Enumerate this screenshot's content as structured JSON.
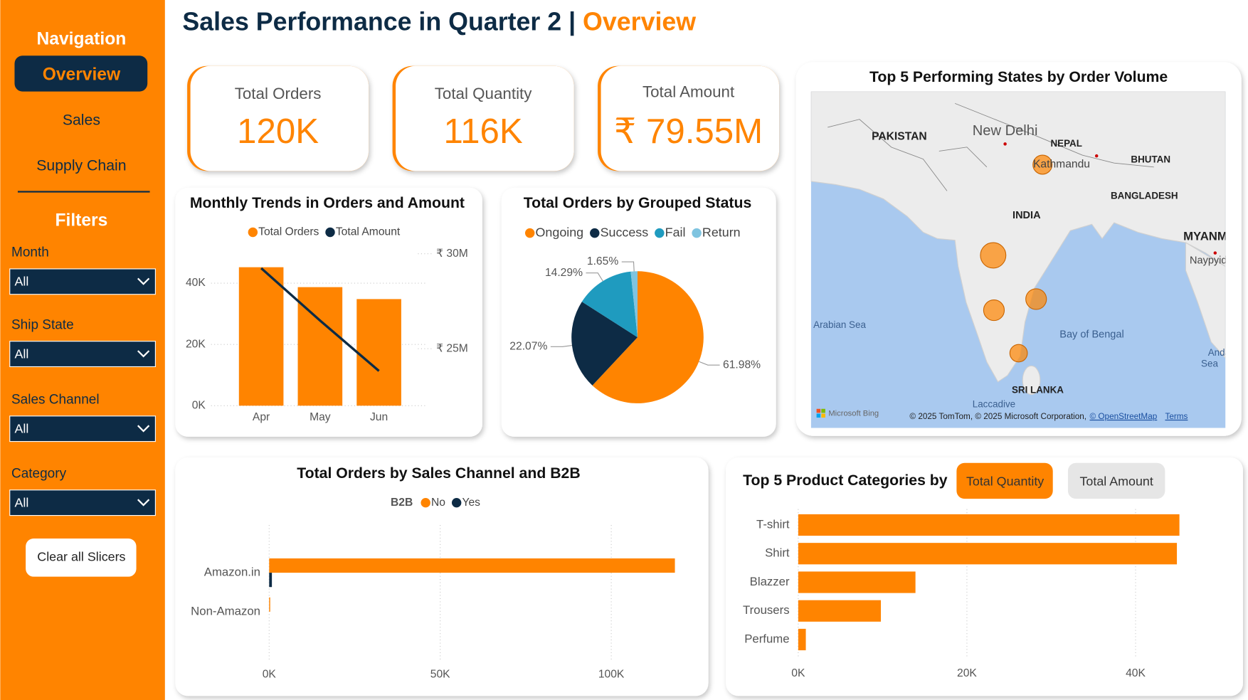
{
  "header": {
    "title": "Sales Performance in Quarter 2",
    "separator": "|",
    "page": "Overview"
  },
  "navigation": {
    "heading": "Navigation",
    "items": [
      "Overview",
      "Sales",
      "Supply Chain"
    ]
  },
  "filters": {
    "heading": "Filters",
    "slicers": [
      {
        "label": "Month",
        "value": "All"
      },
      {
        "label": "Ship State",
        "value": "All"
      },
      {
        "label": "Sales Channel",
        "value": "All"
      },
      {
        "label": "Category",
        "value": "All"
      }
    ],
    "clear_button": "Clear all Slicers"
  },
  "kpis": [
    {
      "label": "Total Orders",
      "value": "120K"
    },
    {
      "label": "Total Quantity",
      "value": "116K"
    },
    {
      "label": "Total Amount",
      "value": "₹ 79.55M"
    }
  ],
  "chart_data": [
    {
      "type": "bar-line",
      "title": "Monthly Trends in Orders and Amount",
      "categories": [
        "Apr",
        "May",
        "Jun"
      ],
      "series": [
        {
          "name": "Total Orders",
          "type": "bar",
          "color": "#ff8400",
          "values": [
            45200,
            38700,
            34800
          ]
        },
        {
          "name": "Total Amount",
          "type": "line",
          "axis": "y2",
          "color": "#0d2b45",
          "values": [
            29240000,
            26480000,
            23830000
          ]
        }
      ],
      "ylim": [
        0,
        49600
      ],
      "yticks": [
        {
          "value": 0,
          "label": "0K"
        },
        {
          "value": 20000,
          "label": "20K"
        },
        {
          "value": 40000,
          "label": "40K"
        }
      ],
      "y2lim": [
        22000000,
        30000000
      ],
      "y2ticks": [
        {
          "value": 25000000,
          "label": "₹ 25M"
        },
        {
          "value": 30000000,
          "label": "₹ 30M"
        }
      ],
      "grid": true
    },
    {
      "type": "pie",
      "title": "Total Orders by Grouped Status",
      "categories": [
        "Ongoing",
        "Success",
        "Fail",
        "Return"
      ],
      "values": [
        61.98,
        22.07,
        14.29,
        1.65
      ],
      "value_labels": [
        "61.98%",
        "22.07%",
        "14.29%",
        "1.65%"
      ],
      "colors": [
        "#ff8400",
        "#0d2b45",
        "#1f9bbf",
        "#7fc4e0"
      ]
    },
    {
      "type": "hbar",
      "title": "Total Orders by Sales Channel and B2B",
      "legend_title": "B2B",
      "categories": [
        "Amazon.in",
        "Non-Amazon"
      ],
      "series": [
        {
          "name": "No",
          "color": "#ff8400",
          "values": [
            118600,
            300
          ]
        },
        {
          "name": "Yes",
          "color": "#0d2b45",
          "values": [
            800,
            0
          ]
        }
      ],
      "xlim": [
        0,
        122000
      ],
      "xticks": [
        {
          "value": 0,
          "label": "0K"
        },
        {
          "value": 50000,
          "label": "50K"
        },
        {
          "value": 100000,
          "label": "100K"
        }
      ],
      "grid": true
    },
    {
      "type": "hbar",
      "title": "Top 5 Product Categories by",
      "toggles": [
        "Total Quantity",
        "Total Amount"
      ],
      "categories": [
        "T-shirt",
        "Shirt",
        "Blazzer",
        "Trousers",
        "Perfume"
      ],
      "series": [
        {
          "color": "#ff8400",
          "values": [
            45200,
            44900,
            13900,
            9800,
            900
          ]
        }
      ],
      "xlim": [
        0,
        50700
      ],
      "xticks": [
        {
          "value": 0,
          "label": "0K"
        },
        {
          "value": 20000,
          "label": "20K"
        },
        {
          "value": 40000,
          "label": "40K"
        }
      ],
      "grid": true
    }
  ],
  "map": {
    "title": "Top 5 Performing States by Order Volume",
    "labels": [
      "PAKISTAN",
      "New Delhi",
      "NEPAL",
      "Kathmandu",
      "BHUTAN",
      "BANGLADESH",
      "INDIA",
      "MYANM",
      "Naypyid",
      "Arabian Sea",
      "Bay of Bengal",
      "Andaman",
      "Sea",
      "SRI LANKA",
      "Laccadive"
    ],
    "attribution": {
      "provider": "Microsoft Bing",
      "copyright": "© 2025 TomTom, © 2025 Microsoft Corporation,",
      "osm": "© OpenStreetMap",
      "terms": "Terms"
    }
  }
}
